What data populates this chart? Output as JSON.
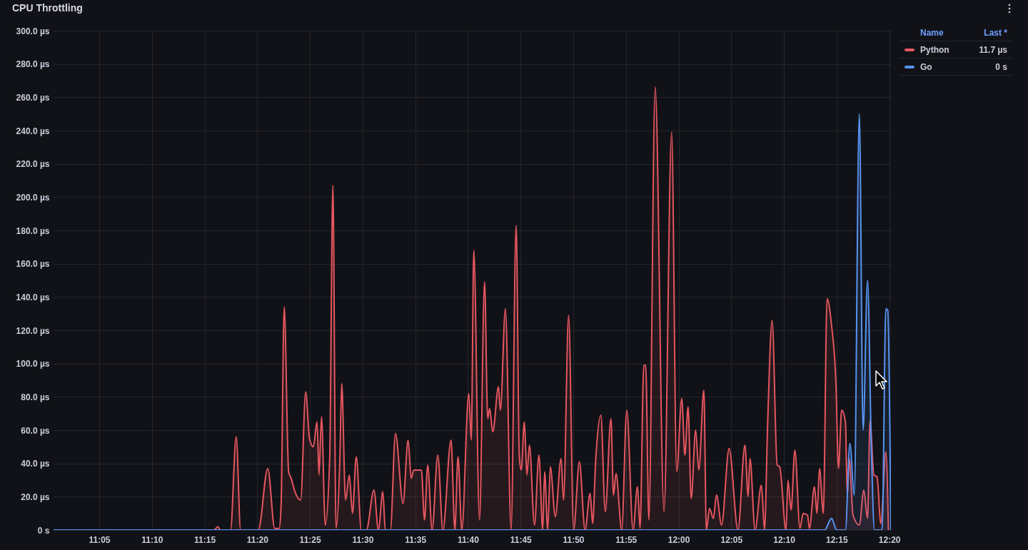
{
  "chart_data": {
    "type": "area",
    "title": "CPU Throttling",
    "xlim": [
      11.011,
      12.336
    ],
    "xticks": [
      {
        "value": 11.08333,
        "label": "11:05"
      },
      {
        "value": 11.16667,
        "label": "11:10"
      },
      {
        "value": 11.25,
        "label": "11:15"
      },
      {
        "value": 11.33333,
        "label": "11:20"
      },
      {
        "value": 11.41667,
        "label": "11:25"
      },
      {
        "value": 11.5,
        "label": "11:30"
      },
      {
        "value": 11.58333,
        "label": "11:35"
      },
      {
        "value": 11.66667,
        "label": "11:40"
      },
      {
        "value": 11.75,
        "label": "11:45"
      },
      {
        "value": 11.83333,
        "label": "11:50"
      },
      {
        "value": 11.91667,
        "label": "11:55"
      },
      {
        "value": 12.0,
        "label": "12:00"
      },
      {
        "value": 12.08333,
        "label": "12:05"
      },
      {
        "value": 12.16667,
        "label": "12:10"
      },
      {
        "value": 12.25,
        "label": "12:15"
      },
      {
        "value": 12.33333,
        "label": "12:20"
      }
    ],
    "ylim": [
      0,
      300
    ],
    "yticks": [
      {
        "value": 0,
        "label": "0 s"
      },
      {
        "value": 20,
        "label": "20.0 µs"
      },
      {
        "value": 40,
        "label": "40.0 µs"
      },
      {
        "value": 60,
        "label": "60.0 µs"
      },
      {
        "value": 80,
        "label": "80.0 µs"
      },
      {
        "value": 100,
        "label": "100.0 µs"
      },
      {
        "value": 120,
        "label": "120.0 µs"
      },
      {
        "value": 140,
        "label": "140.0 µs"
      },
      {
        "value": 160,
        "label": "160.0 µs"
      },
      {
        "value": 180,
        "label": "180.0 µs"
      },
      {
        "value": 200,
        "label": "200.0 µs"
      },
      {
        "value": 220,
        "label": "220.0 µs"
      },
      {
        "value": 240,
        "label": "240.0 µs"
      },
      {
        "value": 260,
        "label": "260.0 µs"
      },
      {
        "value": 280,
        "label": "280.0 µs"
      },
      {
        "value": 300,
        "label": "300.0 µs"
      }
    ],
    "grid": true,
    "legend": "top right",
    "annotations": [
      "Name",
      "Last *",
      "11.7 µs",
      "0 s"
    ],
    "series": [
      {
        "name": "Python",
        "color": "#e5565f",
        "x": [
          11.011,
          11.265,
          11.271,
          11.275,
          11.291,
          11.3,
          11.307,
          11.335,
          11.35,
          11.361,
          11.368,
          11.371,
          11.376,
          11.383,
          11.387,
          11.393,
          11.402,
          11.41,
          11.416,
          11.422,
          11.428,
          11.431,
          11.435,
          11.441,
          11.448,
          11.453,
          11.458,
          11.464,
          11.467,
          11.473,
          11.479,
          11.484,
          11.49,
          11.498,
          11.506,
          11.518,
          11.525,
          11.532,
          11.536,
          11.544,
          11.552,
          11.564,
          11.572,
          11.577,
          11.581,
          11.593,
          11.598,
          11.603,
          11.61,
          11.619,
          11.627,
          11.64,
          11.646,
          11.651,
          11.657,
          11.668,
          11.672,
          11.676,
          11.685,
          11.693,
          11.698,
          11.701,
          11.706,
          11.715,
          11.718,
          11.726,
          11.735,
          11.743,
          11.748,
          11.751,
          11.756,
          11.76,
          11.764,
          11.772,
          11.779,
          11.785,
          11.788,
          11.793,
          11.797,
          11.805,
          11.814,
          11.818,
          11.826,
          11.834,
          11.843,
          11.852,
          11.86,
          11.864,
          11.869,
          11.877,
          11.884,
          11.893,
          11.897,
          11.901,
          11.91,
          11.918,
          11.928,
          11.935,
          11.939,
          11.945,
          11.948,
          11.953,
          11.963,
          11.977,
          11.989,
          11.997,
          12.005,
          12.01,
          12.015,
          12.02,
          12.027,
          12.032,
          12.04,
          12.044,
          12.049,
          12.055,
          12.06,
          12.068,
          12.08,
          12.094,
          12.105,
          12.11,
          12.113,
          12.121,
          12.131,
          12.136,
          12.141,
          12.148,
          12.156,
          12.16,
          12.17,
          12.173,
          12.178,
          12.184,
          12.192,
          12.197,
          12.204,
          12.207,
          12.215,
          12.219,
          12.223,
          12.229,
          12.235,
          12.242,
          12.249,
          12.253,
          12.258,
          12.264,
          12.267,
          12.27,
          12.276,
          12.286,
          12.293,
          12.299,
          12.303,
          12.309,
          12.314,
          12.32,
          12.328,
          12.332
        ],
        "values": [
          0,
          0,
          2,
          0,
          0,
          56,
          0,
          0,
          37,
          1,
          1,
          14,
          134,
          35,
          31,
          23,
          18,
          83,
          55,
          50,
          65,
          33,
          68,
          3,
          44,
          207,
          1,
          42,
          88,
          18,
          33,
          10,
          44,
          0,
          0,
          24,
          0,
          23,
          0,
          0,
          58,
          16,
          54,
          31,
          36,
          36,
          6,
          39,
          0,
          45,
          0,
          54,
          0,
          44,
          0,
          82,
          54,
          168,
          6,
          149,
          67,
          73,
          59,
          86,
          72,
          133,
          0,
          183,
          44,
          36,
          65,
          33,
          51,
          3,
          45,
          0,
          35,
          0,
          38,
          8,
          43,
          18,
          129,
          0,
          41,
          0,
          22,
          4,
          43,
          69,
          11,
          67,
          21,
          34,
          0,
          72,
          0,
          26,
          1,
          99,
          99,
          6,
          266,
          11,
          239,
          35,
          79,
          45,
          74,
          19,
          60,
          36,
          84,
          0,
          13,
          7,
          21,
          3,
          49,
          0,
          51,
          20,
          43,
          0,
          27,
          0,
          65,
          126,
          39,
          38,
          0,
          30,
          12,
          48,
          1,
          10,
          9,
          1,
          26,
          10,
          37,
          10,
          139,
          123,
          88,
          37,
          72,
          65,
          20,
          43,
          9,
          3,
          24,
          7,
          66,
          33,
          32,
          4,
          47,
          0
        ]
      },
      {
        "name": "Go",
        "color": "#5794f2",
        "x": [
          11.011,
          12.231,
          12.242,
          12.25,
          12.264,
          12.271,
          12.278,
          12.286,
          12.292,
          12.299,
          12.305,
          12.31,
          12.317,
          12.322,
          12.328,
          12.331,
          12.336
        ],
        "values": [
          0,
          0,
          7,
          0,
          0,
          52,
          21,
          250,
          60,
          150,
          49,
          0,
          0,
          0,
          133,
          132,
          0
        ]
      }
    ]
  }
}
